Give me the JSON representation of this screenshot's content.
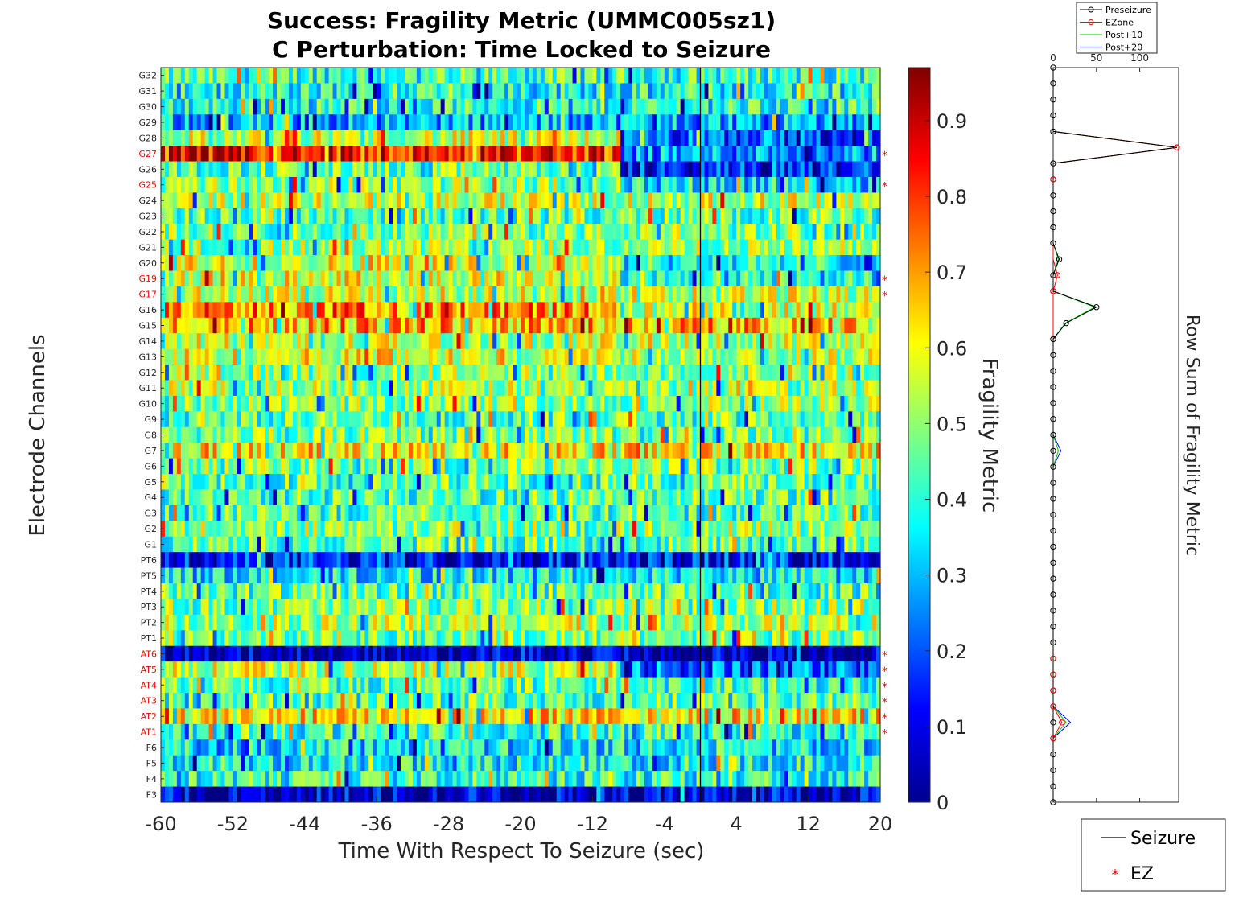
{
  "chart_data": [
    {
      "type": "heatmap",
      "title": "Success: Fragility Metric (UMMC005sz1)",
      "subtitle": "C Perturbation:  Time Locked to Seizure",
      "xlabel": "Time With Respect To Seizure (sec)",
      "ylabel": "Electrode Channels",
      "xlim": [
        -60,
        20
      ],
      "x_ticks": [
        "-60",
        "-52",
        "-44",
        "-36",
        "-28",
        "-20",
        "-12",
        "-4",
        "4",
        "12",
        "20"
      ],
      "seizure_onset_x": 0,
      "colormap": "jet",
      "colorbar": {
        "label": "Fragility Metric",
        "range": [
          0,
          0.97
        ],
        "ticks": [
          "0",
          "0.1",
          "0.2",
          "0.3",
          "0.4",
          "0.5",
          "0.6",
          "0.7",
          "0.8",
          "0.9"
        ]
      },
      "channels": [
        "G32",
        "G31",
        "G30",
        "G29",
        "G28",
        "G27",
        "G26",
        "G25",
        "G24",
        "G23",
        "G22",
        "G21",
        "G20",
        "G19",
        "G17",
        "G16",
        "G15",
        "G14",
        "G13",
        "G12",
        "G11",
        "G10",
        "G9",
        "G8",
        "G7",
        "G6",
        "G5",
        "G4",
        "G3",
        "G2",
        "G1",
        "PT6",
        "PT5",
        "PT4",
        "PT3",
        "PT2",
        "PT1",
        "AT6",
        "AT5",
        "AT4",
        "AT3",
        "AT2",
        "AT1",
        "F6",
        "F5",
        "F4",
        "F3"
      ],
      "ez_channels": [
        "G27",
        "G25",
        "G19",
        "G17",
        "AT6",
        "AT5",
        "AT4",
        "AT3",
        "AT2",
        "AT1"
      ],
      "ez_color": "#ff0000",
      "channel_profiles": [
        {
          "channel": "G32",
          "base": 0.42,
          "late": 0.42
        },
        {
          "channel": "G31",
          "base": 0.38,
          "late": 0.38
        },
        {
          "channel": "G30",
          "base": 0.4,
          "late": 0.4
        },
        {
          "channel": "G29",
          "base": 0.3,
          "late": 0.3
        },
        {
          "channel": "G28",
          "base": 0.55,
          "late": 0.2
        },
        {
          "channel": "G27",
          "base": 0.82,
          "late": 0.28
        },
        {
          "channel": "G26",
          "base": 0.45,
          "late": 0.15
        },
        {
          "channel": "G25",
          "base": 0.5,
          "late": 0.35
        },
        {
          "channel": "G24",
          "base": 0.55,
          "late": 0.55
        },
        {
          "channel": "G23",
          "base": 0.45,
          "late": 0.45
        },
        {
          "channel": "G22",
          "base": 0.48,
          "late": 0.48
        },
        {
          "channel": "G21",
          "base": 0.5,
          "late": 0.5
        },
        {
          "channel": "G20",
          "base": 0.58,
          "late": 0.38
        },
        {
          "channel": "G19",
          "base": 0.58,
          "late": 0.4
        },
        {
          "channel": "G17",
          "base": 0.55,
          "late": 0.55
        },
        {
          "channel": "G16",
          "base": 0.72,
          "late": 0.55
        },
        {
          "channel": "G15",
          "base": 0.68,
          "late": 0.68
        },
        {
          "channel": "G14",
          "base": 0.55,
          "late": 0.55
        },
        {
          "channel": "G13",
          "base": 0.58,
          "late": 0.55
        },
        {
          "channel": "G12",
          "base": 0.5,
          "late": 0.5
        },
        {
          "channel": "G11",
          "base": 0.52,
          "late": 0.5
        },
        {
          "channel": "G10",
          "base": 0.5,
          "late": 0.5
        },
        {
          "channel": "G9",
          "base": 0.45,
          "late": 0.45
        },
        {
          "channel": "G8",
          "base": 0.48,
          "late": 0.48
        },
        {
          "channel": "G7",
          "base": 0.62,
          "late": 0.62
        },
        {
          "channel": "G6",
          "base": 0.48,
          "late": 0.48
        },
        {
          "channel": "G5",
          "base": 0.45,
          "late": 0.45
        },
        {
          "channel": "G4",
          "base": 0.44,
          "late": 0.44
        },
        {
          "channel": "G3",
          "base": 0.44,
          "late": 0.44
        },
        {
          "channel": "G2",
          "base": 0.5,
          "late": 0.5
        },
        {
          "channel": "G1",
          "base": 0.45,
          "late": 0.45
        },
        {
          "channel": "PT6",
          "base": 0.15,
          "late": 0.15
        },
        {
          "channel": "PT5",
          "base": 0.35,
          "late": 0.35
        },
        {
          "channel": "PT4",
          "base": 0.45,
          "late": 0.45
        },
        {
          "channel": "PT3",
          "base": 0.48,
          "late": 0.48
        },
        {
          "channel": "PT2",
          "base": 0.52,
          "late": 0.52
        },
        {
          "channel": "PT1",
          "base": 0.48,
          "late": 0.48
        },
        {
          "channel": "AT6",
          "base": 0.05,
          "late": 0.05
        },
        {
          "channel": "AT5",
          "base": 0.55,
          "late": 0.22
        },
        {
          "channel": "AT4",
          "base": 0.45,
          "late": 0.42
        },
        {
          "channel": "AT3",
          "base": 0.45,
          "late": 0.45
        },
        {
          "channel": "AT2",
          "base": 0.62,
          "late": 0.62
        },
        {
          "channel": "AT1",
          "base": 0.4,
          "late": 0.4
        },
        {
          "channel": "F6",
          "base": 0.35,
          "late": 0.35
        },
        {
          "channel": "F5",
          "base": 0.38,
          "late": 0.38
        },
        {
          "channel": "F4",
          "base": 0.4,
          "late": 0.4
        },
        {
          "channel": "F3",
          "base": 0.08,
          "late": 0.08
        }
      ]
    },
    {
      "type": "line",
      "ylabel": "Row Sum of Fragility Metric",
      "x_ticks": [
        "0",
        "50",
        "100"
      ],
      "xlim": [
        0,
        145
      ],
      "series": [
        {
          "name": "Preseizure",
          "color": "#000000",
          "values": [
            0,
            0,
            0,
            0,
            0,
            143,
            0,
            0,
            0,
            0,
            0,
            0,
            7,
            0,
            0,
            50,
            15,
            0,
            0,
            0,
            0,
            0,
            0,
            0,
            0,
            0,
            0,
            0,
            0,
            0,
            0,
            0,
            0,
            0,
            0,
            0,
            0,
            0,
            0,
            0,
            0,
            0,
            0,
            0,
            0,
            0,
            0
          ]
        },
        {
          "name": "EZone",
          "color": "#ff0000",
          "values": [
            0,
            0,
            0,
            0,
            0,
            143,
            0,
            0,
            0,
            0,
            0,
            0,
            0,
            5,
            0,
            0,
            0,
            0,
            0,
            0,
            0,
            0,
            0,
            0,
            0,
            0,
            0,
            0,
            0,
            0,
            0,
            0,
            0,
            0,
            0,
            0,
            0,
            0,
            0,
            0,
            0,
            10,
            0,
            0,
            0,
            0,
            0
          ]
        },
        {
          "name": "Post+10",
          "color": "#00cc00",
          "values": [
            0,
            0,
            0,
            0,
            0,
            143,
            0,
            0,
            0,
            0,
            0,
            0,
            6,
            0,
            0,
            48,
            14,
            0,
            0,
            0,
            0,
            0,
            0,
            0,
            6,
            0,
            0,
            0,
            0,
            0,
            0,
            0,
            0,
            0,
            0,
            0,
            0,
            0,
            0,
            0,
            0,
            15,
            0,
            0,
            0,
            0,
            0
          ]
        },
        {
          "name": "Post+20",
          "color": "#0000ff",
          "values": [
            0,
            0,
            0,
            0,
            0,
            143,
            0,
            0,
            0,
            0,
            0,
            0,
            6,
            0,
            0,
            50,
            14,
            0,
            0,
            0,
            0,
            0,
            0,
            0,
            9,
            0,
            0,
            0,
            0,
            0,
            0,
            0,
            0,
            0,
            0,
            0,
            0,
            0,
            0,
            0,
            0,
            20,
            0,
            0,
            0,
            0,
            0
          ]
        }
      ]
    }
  ],
  "legend": {
    "seizure_label": "Seizure",
    "ez_label": "EZ"
  },
  "colors": {
    "seizure_line": "#000000",
    "ez_marker": "#ff0000"
  }
}
